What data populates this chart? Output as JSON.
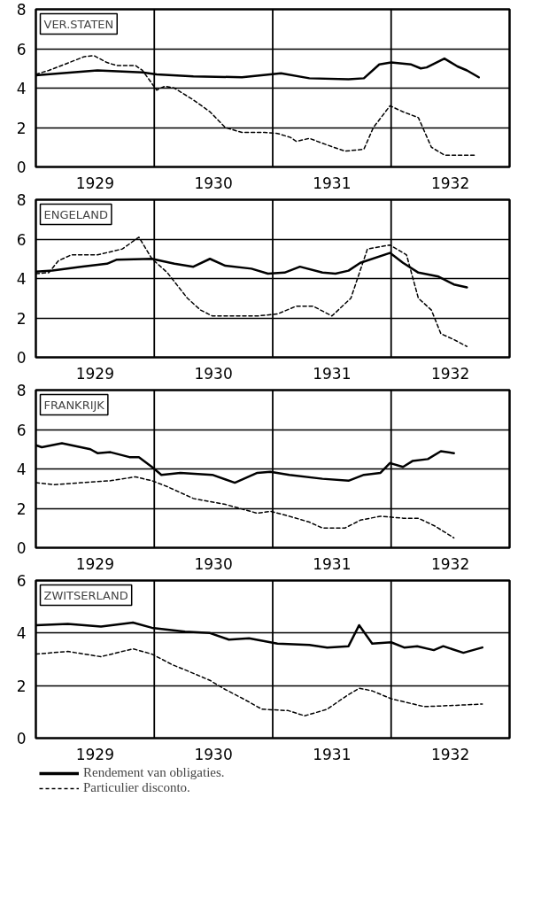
{
  "chart_data": [
    {
      "type": "line",
      "title": "VER.STATEN",
      "xlim": [
        1929,
        1933
      ],
      "ylim": [
        0,
        8
      ],
      "yticks": [
        0,
        2,
        4,
        6,
        8
      ],
      "xticks": [
        {
          "value": 1929.5,
          "label": "1929"
        },
        {
          "value": 1930.5,
          "label": "1930"
        },
        {
          "value": 1931.5,
          "label": "1931"
        },
        {
          "value": 1932.5,
          "label": "1932"
        }
      ],
      "grid": "y",
      "marker": "none",
      "ref_lines": [
        {
          "axis": "x",
          "value": 1930
        },
        {
          "axis": "x",
          "value": 1931
        },
        {
          "axis": "x",
          "value": 1932
        }
      ],
      "series": [
        {
          "color": "#000000",
          "line_style": "solid",
          "x": [
            1929.0,
            1929.52,
            1929.9,
            1930.02,
            1930.33,
            1930.74,
            1931.07,
            1931.31,
            1931.64,
            1931.77,
            1931.9,
            1932.0,
            1932.17,
            1932.25,
            1932.3,
            1932.45,
            1932.56,
            1932.64,
            1932.74
          ],
          "values": [
            4.65,
            4.9,
            4.8,
            4.7,
            4.6,
            4.55,
            4.75,
            4.5,
            4.45,
            4.5,
            5.2,
            5.3,
            5.2,
            5.0,
            5.05,
            5.5,
            5.1,
            4.9,
            4.55
          ]
        },
        {
          "color": "#000000",
          "line_style": "dashed",
          "x": [
            1929.0,
            1929.11,
            1929.24,
            1929.41,
            1929.49,
            1929.6,
            1929.68,
            1929.84,
            1929.9,
            1930.02,
            1930.09,
            1930.17,
            1930.33,
            1930.47,
            1930.6,
            1930.74,
            1930.93,
            1931.04,
            1931.15,
            1931.2,
            1931.31,
            1931.42,
            1931.61,
            1931.77,
            1931.85,
            1931.99,
            1932.1,
            1932.23,
            1932.34,
            1932.45,
            1932.72
          ],
          "values": [
            4.7,
            4.9,
            5.2,
            5.6,
            5.65,
            5.3,
            5.15,
            5.15,
            4.9,
            3.9,
            4.1,
            4.0,
            3.4,
            2.8,
            2.0,
            1.75,
            1.75,
            1.7,
            1.5,
            1.3,
            1.45,
            1.2,
            0.8,
            0.9,
            2.0,
            3.1,
            2.8,
            2.5,
            1.0,
            0.6,
            0.6
          ]
        }
      ]
    },
    {
      "type": "line",
      "title": "ENGELAND",
      "xlim": [
        1929,
        1933
      ],
      "ylim": [
        0,
        8
      ],
      "yticks": [
        0,
        2,
        4,
        6,
        8
      ],
      "xticks": [
        {
          "value": 1929.5,
          "label": "1929"
        },
        {
          "value": 1930.5,
          "label": "1930"
        },
        {
          "value": 1931.5,
          "label": "1931"
        },
        {
          "value": 1932.5,
          "label": "1932"
        }
      ],
      "grid": "y",
      "marker": "none",
      "ref_lines": [
        {
          "axis": "x",
          "value": 1930
        },
        {
          "axis": "x",
          "value": 1931
        },
        {
          "axis": "x",
          "value": 1932
        }
      ],
      "series": [
        {
          "color": "#000000",
          "line_style": "solid",
          "x": [
            1929.0,
            1929.14,
            1929.38,
            1929.6,
            1929.68,
            1929.98,
            1930.17,
            1930.33,
            1930.47,
            1930.6,
            1930.82,
            1930.96,
            1931.1,
            1931.23,
            1931.42,
            1931.53,
            1931.64,
            1931.74,
            1931.99,
            1932.1,
            1932.23,
            1932.4,
            1932.53,
            1932.64
          ],
          "values": [
            4.35,
            4.4,
            4.6,
            4.75,
            4.95,
            5.0,
            4.75,
            4.6,
            5.0,
            4.65,
            4.5,
            4.25,
            4.3,
            4.6,
            4.3,
            4.25,
            4.4,
            4.8,
            5.3,
            4.8,
            4.3,
            4.1,
            3.7,
            3.55
          ]
        },
        {
          "color": "#000000",
          "line_style": "dashed",
          "x": [
            1929.0,
            1929.11,
            1929.19,
            1929.3,
            1929.52,
            1929.73,
            1929.87,
            1929.98,
            1930.11,
            1930.28,
            1930.39,
            1930.49,
            1930.87,
            1931.04,
            1931.2,
            1931.34,
            1931.5,
            1931.66,
            1931.8,
            1931.99,
            1932.13,
            1932.23,
            1932.34,
            1932.42,
            1932.53,
            1932.64
          ],
          "values": [
            4.25,
            4.3,
            4.9,
            5.2,
            5.2,
            5.5,
            6.1,
            5.0,
            4.3,
            3.0,
            2.4,
            2.1,
            2.1,
            2.2,
            2.6,
            2.6,
            2.1,
            3.0,
            5.5,
            5.7,
            5.2,
            3.0,
            2.4,
            1.2,
            0.9,
            0.55
          ]
        }
      ]
    },
    {
      "type": "line",
      "title": "FRANKRIJK",
      "xlim": [
        1929,
        1933
      ],
      "ylim": [
        0,
        8
      ],
      "yticks": [
        0,
        2,
        4,
        6,
        8
      ],
      "xticks": [
        {
          "value": 1929.5,
          "label": "1929"
        },
        {
          "value": 1930.5,
          "label": "1930"
        },
        {
          "value": 1931.5,
          "label": "1931"
        },
        {
          "value": 1932.5,
          "label": "1932"
        }
      ],
      "grid": "y",
      "marker": "none",
      "ref_lines": [
        {
          "axis": "x",
          "value": 1930
        },
        {
          "axis": "x",
          "value": 1931
        },
        {
          "axis": "x",
          "value": 1932
        }
      ],
      "series": [
        {
          "color": "#000000",
          "line_style": "solid",
          "x": [
            1929.0,
            1929.05,
            1929.22,
            1929.46,
            1929.52,
            1929.63,
            1929.79,
            1929.87,
            1929.98,
            1930.06,
            1930.22,
            1930.49,
            1930.68,
            1930.87,
            1930.98,
            1931.14,
            1931.42,
            1931.64,
            1931.77,
            1931.91,
            1931.99,
            1932.1,
            1932.18,
            1932.31,
            1932.42,
            1932.53
          ],
          "values": [
            5.2,
            5.1,
            5.3,
            5.0,
            4.8,
            4.85,
            4.6,
            4.6,
            4.1,
            3.7,
            3.8,
            3.7,
            3.3,
            3.8,
            3.85,
            3.7,
            3.5,
            3.4,
            3.7,
            3.8,
            4.3,
            4.1,
            4.4,
            4.5,
            4.9,
            4.8
          ]
        },
        {
          "color": "#000000",
          "line_style": "dashed",
          "x": [
            1929.0,
            1929.16,
            1929.38,
            1929.63,
            1929.84,
            1929.98,
            1930.11,
            1930.22,
            1930.33,
            1930.6,
            1930.87,
            1930.98,
            1931.14,
            1931.31,
            1931.42,
            1931.61,
            1931.74,
            1931.91,
            1932.1,
            1932.23,
            1932.37,
            1932.53
          ],
          "values": [
            3.3,
            3.2,
            3.3,
            3.4,
            3.6,
            3.4,
            3.1,
            2.8,
            2.5,
            2.2,
            1.75,
            1.85,
            1.6,
            1.3,
            1.0,
            1.0,
            1.4,
            1.6,
            1.5,
            1.5,
            1.1,
            0.5
          ]
        }
      ]
    },
    {
      "type": "line",
      "title": "ZWITSERLAND",
      "xlim": [
        1929,
        1933
      ],
      "ylim": [
        0,
        6
      ],
      "yticks": [
        0,
        2,
        4,
        6
      ],
      "xticks": [
        {
          "value": 1929.5,
          "label": "1929"
        },
        {
          "value": 1930.5,
          "label": "1930"
        },
        {
          "value": 1931.5,
          "label": "1931"
        },
        {
          "value": 1932.5,
          "label": "1932"
        }
      ],
      "grid": "y",
      "legend": "bottom",
      "marker": "none",
      "ref_lines": [
        {
          "axis": "x",
          "value": 1930
        },
        {
          "axis": "x",
          "value": 1931
        },
        {
          "axis": "x",
          "value": 1932
        }
      ],
      "series": [
        {
          "name": "Rendement van obligaties.",
          "color": "#000000",
          "line_style": "solid",
          "x": [
            1929.0,
            1929.27,
            1929.55,
            1929.82,
            1929.98,
            1930.26,
            1930.47,
            1930.63,
            1930.8,
            1931.04,
            1931.31,
            1931.46,
            1931.64,
            1931.73,
            1931.84,
            1932.0,
            1932.11,
            1932.22,
            1932.36,
            1932.44,
            1932.61,
            1932.77
          ],
          "values": [
            4.3,
            4.35,
            4.25,
            4.4,
            4.2,
            4.05,
            4.0,
            3.75,
            3.8,
            3.6,
            3.55,
            3.45,
            3.5,
            4.3,
            3.6,
            3.65,
            3.45,
            3.5,
            3.35,
            3.5,
            3.25,
            3.45
          ]
        },
        {
          "name": "Particulier disconto.",
          "color": "#000000",
          "line_style": "dashed",
          "x": [
            1929.0,
            1929.27,
            1929.55,
            1929.82,
            1929.98,
            1930.15,
            1930.26,
            1930.47,
            1930.58,
            1930.75,
            1930.91,
            1931.13,
            1931.27,
            1931.46,
            1931.62,
            1931.73,
            1931.84,
            1932.0,
            1932.28,
            1932.55,
            1932.77
          ],
          "values": [
            3.2,
            3.3,
            3.1,
            3.4,
            3.2,
            2.8,
            2.6,
            2.2,
            1.9,
            1.5,
            1.1,
            1.05,
            0.85,
            1.1,
            1.6,
            1.9,
            1.8,
            1.5,
            1.2,
            1.25,
            1.3
          ]
        }
      ]
    }
  ]
}
